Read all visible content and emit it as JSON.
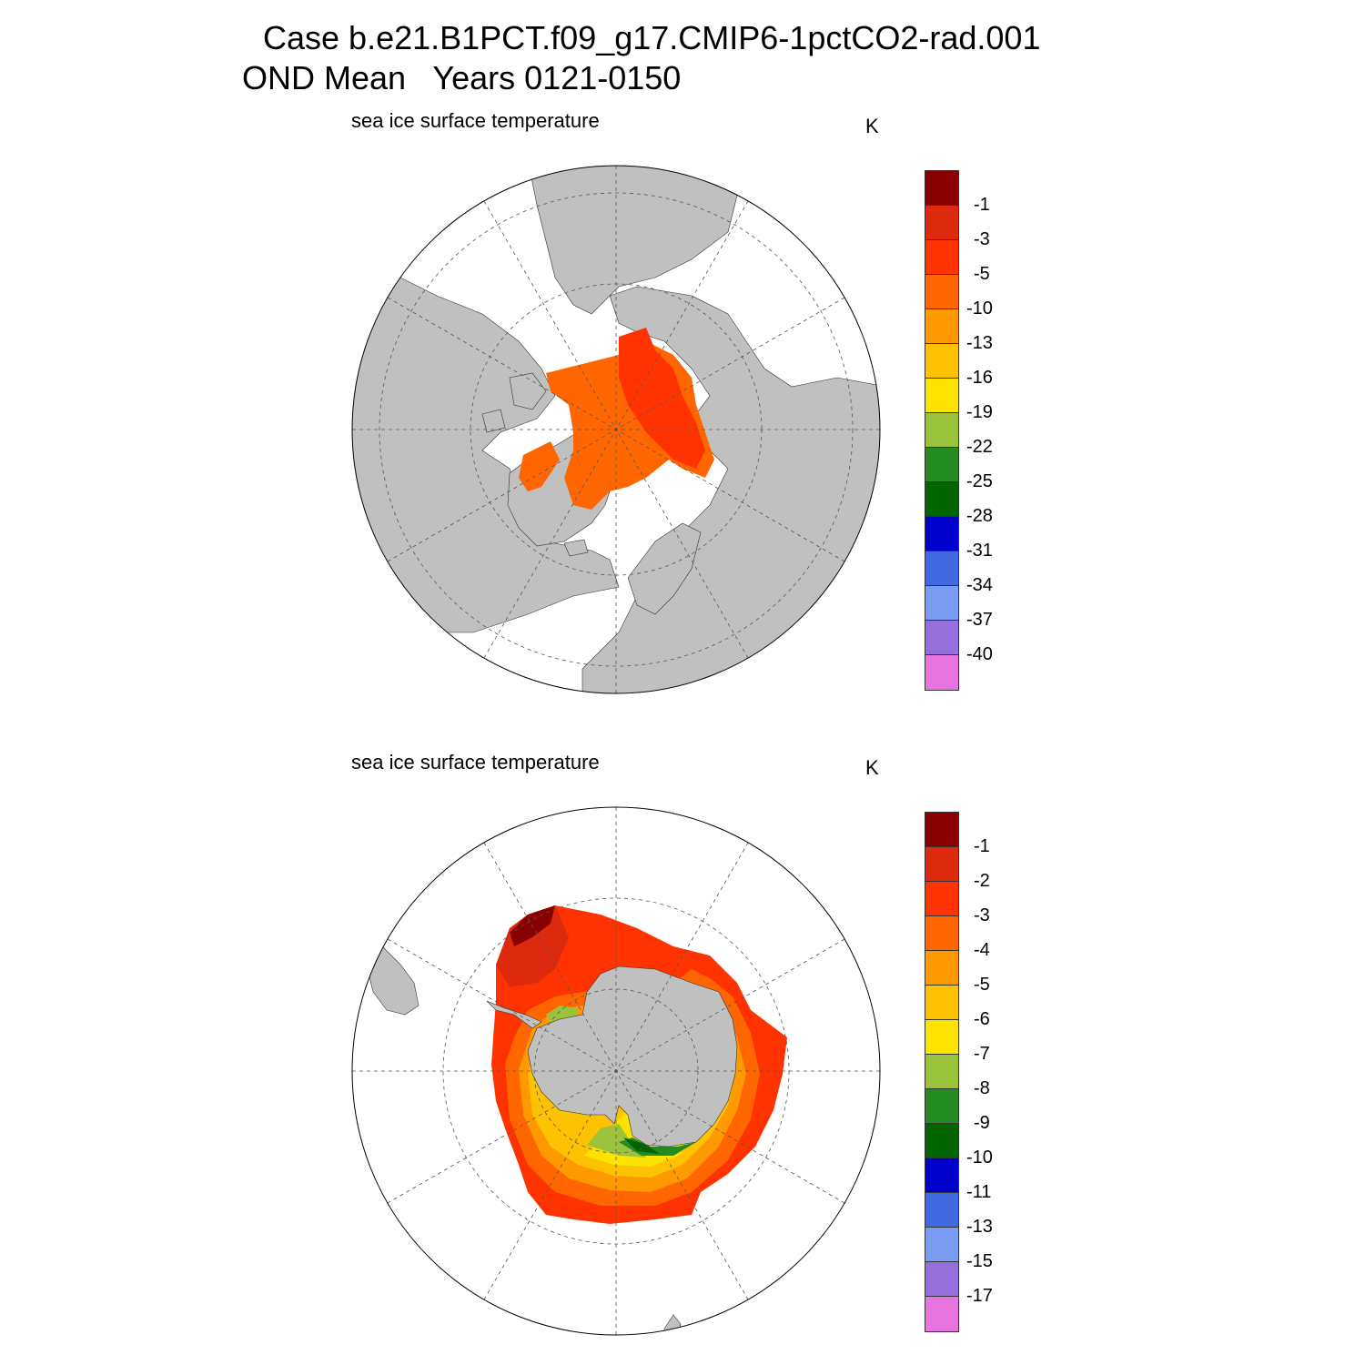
{
  "title": {
    "line1": "Case b.e21.B1PCT.f09_g17.CMIP6-1pctCO2-rad.001",
    "line2": "OND Mean   Years 0121-0150"
  },
  "panels": [
    {
      "id": "north",
      "subtitle": "sea ice surface temperature",
      "units": "K",
      "colorbar": {
        "labels": [
          "-1",
          "-3",
          "-5",
          "-10",
          "-13",
          "-16",
          "-19",
          "-22",
          "-25",
          "-28",
          "-31",
          "-34",
          "-37",
          "-40"
        ],
        "colors": [
          "#880000",
          "#dd2a0e",
          "#ff3300",
          "#ff6600",
          "#ff9900",
          "#ffc200",
          "#ffe300",
          "#9ac23a",
          "#238b22",
          "#006400",
          "#0000cd",
          "#4169e1",
          "#7a9cf2",
          "#9370db",
          "#e874e0"
        ]
      }
    },
    {
      "id": "south",
      "subtitle": "sea ice surface temperature",
      "units": "K",
      "colorbar": {
        "labels": [
          "-1",
          "-2",
          "-3",
          "-4",
          "-5",
          "-6",
          "-7",
          "-8",
          "-9",
          "-10",
          "-11",
          "-13",
          "-15",
          "-17"
        ],
        "colors": [
          "#880000",
          "#dd2a0e",
          "#ff3300",
          "#ff6600",
          "#ff9900",
          "#ffc200",
          "#ffe300",
          "#9ac23a",
          "#238b22",
          "#006400",
          "#0000cd",
          "#4169e1",
          "#7a9cf2",
          "#9370db",
          "#e874e0"
        ]
      }
    }
  ],
  "colors": {
    "land": "#c0c0c0",
    "ocean": "#ffffff",
    "grid": "#555555"
  }
}
